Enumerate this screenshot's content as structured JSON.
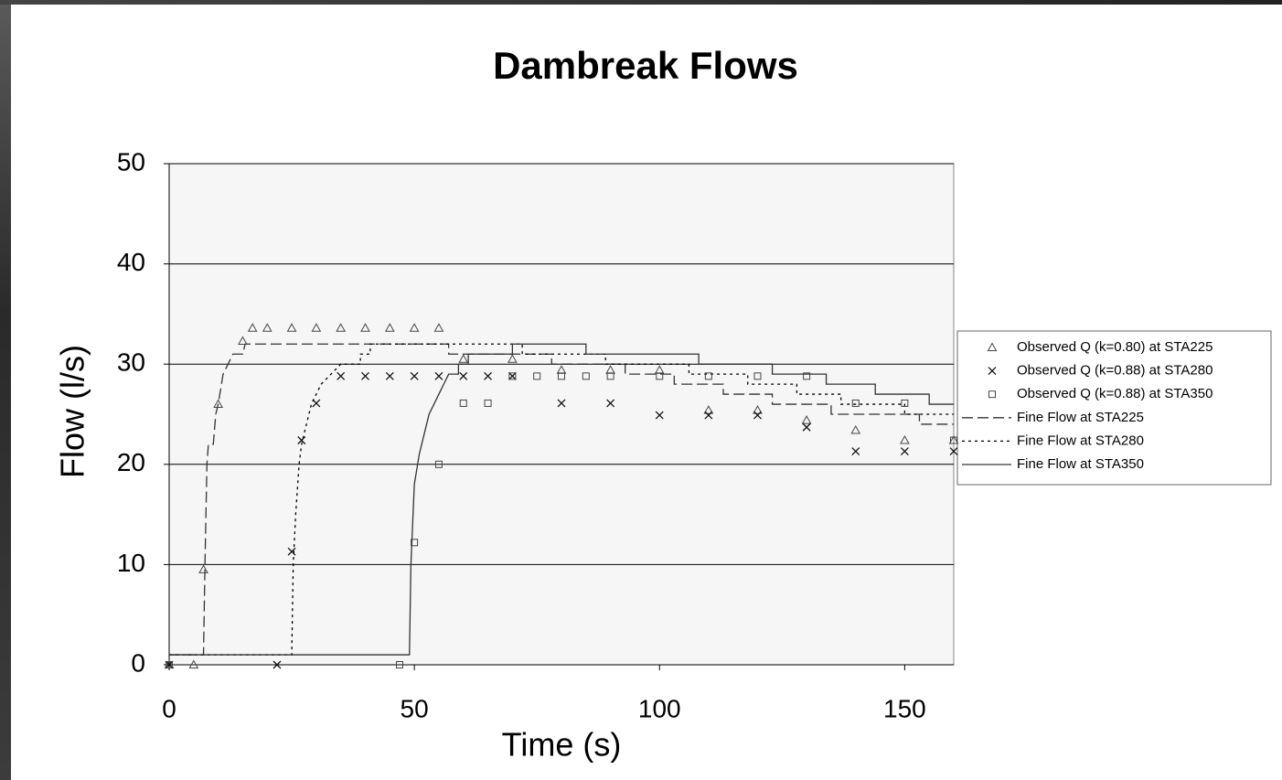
{
  "chart_data": {
    "type": "line",
    "title": "Dambreak Flows",
    "x_label": "Time (s)",
    "y_label": "Flow (l/s)",
    "xlim": [
      0,
      160
    ],
    "xticks": [
      0,
      50,
      100,
      150
    ],
    "ylim": [
      0,
      50
    ],
    "yticks": [
      0,
      10,
      20,
      30,
      40,
      50
    ],
    "grid": true,
    "legend": "right",
    "series": [
      {
        "name": "Observed Q (k=0.80) at STA225",
        "type": "scatter",
        "marker": "triangle",
        "color": "#444444",
        "x": [
          0,
          5,
          7,
          10,
          15,
          17,
          20,
          25,
          30,
          35,
          40,
          45,
          50,
          55,
          60,
          70,
          80,
          90,
          100,
          110,
          120,
          130,
          140,
          150,
          160
        ],
        "values": [
          0,
          0,
          9.5,
          26,
          32.3,
          33.6,
          33.6,
          33.6,
          33.6,
          33.6,
          33.6,
          33.6,
          33.6,
          33.6,
          30.5,
          30.5,
          29.4,
          29.4,
          29.4,
          25.4,
          25.4,
          24.4,
          23.4,
          22.4,
          22.4
        ]
      },
      {
        "name": "Observed Q (k=0.88) at STA280",
        "type": "scatter",
        "marker": "x",
        "color": "#111111",
        "x": [
          0,
          22,
          25,
          27,
          30,
          35,
          40,
          45,
          50,
          55,
          60,
          65,
          70,
          80,
          90,
          100,
          110,
          120,
          130,
          140,
          150,
          160
        ],
        "values": [
          0,
          0,
          11.3,
          22.4,
          26.1,
          28.8,
          28.8,
          28.8,
          28.8,
          28.8,
          28.8,
          28.8,
          28.8,
          26.1,
          26.1,
          24.9,
          24.9,
          24.9,
          23.7,
          21.3,
          21.3,
          21.3
        ]
      },
      {
        "name": "Observed Q (k=0.88) at STA350",
        "type": "scatter",
        "marker": "square",
        "color": "#444444",
        "x": [
          0,
          47,
          50,
          55,
          60,
          65,
          70,
          75,
          80,
          85,
          90,
          100,
          110,
          120,
          130,
          140,
          150,
          160
        ],
        "values": [
          0,
          0,
          12.2,
          20,
          26.1,
          26.1,
          28.8,
          28.8,
          28.8,
          28.8,
          28.8,
          28.8,
          28.8,
          28.8,
          28.8,
          26.1,
          26.1,
          22.4
        ]
      },
      {
        "name": "Fine Flow at STA225",
        "type": "line",
        "dash": "dashed",
        "color": "#333333",
        "x": [
          0,
          7,
          7.3,
          7.7,
          8,
          9,
          9.5,
          10,
          11,
          12,
          13,
          15,
          15.5,
          57,
          57,
          78,
          78,
          93,
          93,
          103,
          103,
          113,
          113,
          123,
          123,
          135,
          135,
          153,
          153,
          160
        ],
        "values": [
          1,
          1,
          10,
          20,
          22,
          22,
          25,
          26,
          29,
          30,
          31,
          31,
          32,
          32,
          31,
          31,
          30,
          30,
          29,
          29,
          28,
          28,
          27,
          27,
          26,
          26,
          25,
          25,
          24,
          24
        ]
      },
      {
        "name": "Fine Flow at STA280",
        "type": "line",
        "dash": "dotted",
        "color": "#000000",
        "x": [
          0,
          25,
          25.3,
          25.8,
          26.5,
          27,
          28,
          29,
          30,
          31,
          33,
          35,
          39,
          39,
          41,
          41,
          72,
          72,
          89,
          89,
          106,
          106,
          118,
          118,
          128,
          128,
          137,
          137,
          150,
          150,
          160
        ],
        "values": [
          1,
          1,
          10,
          15,
          20,
          22,
          24,
          26,
          27,
          28,
          29,
          30,
          30,
          31,
          31,
          32,
          32,
          31,
          31,
          30,
          30,
          29,
          29,
          28,
          28,
          27,
          27,
          26,
          26,
          25,
          25
        ]
      },
      {
        "name": "Fine Flow at STA350",
        "type": "line",
        "dash": "solid",
        "color": "#333333",
        "x": [
          0,
          49,
          49.3,
          50,
          51,
          52,
          53,
          54,
          55,
          56,
          57,
          59,
          59,
          61,
          61,
          70,
          70,
          85,
          85,
          108,
          108,
          123,
          123,
          134,
          134,
          144,
          144,
          155,
          155,
          160
        ],
        "values": [
          1,
          1,
          10,
          18,
          21,
          23,
          25,
          26,
          27,
          28,
          29,
          29,
          30,
          30,
          31,
          31,
          32,
          32,
          31,
          31,
          30,
          30,
          29,
          29,
          28,
          28,
          27,
          27,
          26,
          26
        ]
      }
    ]
  }
}
